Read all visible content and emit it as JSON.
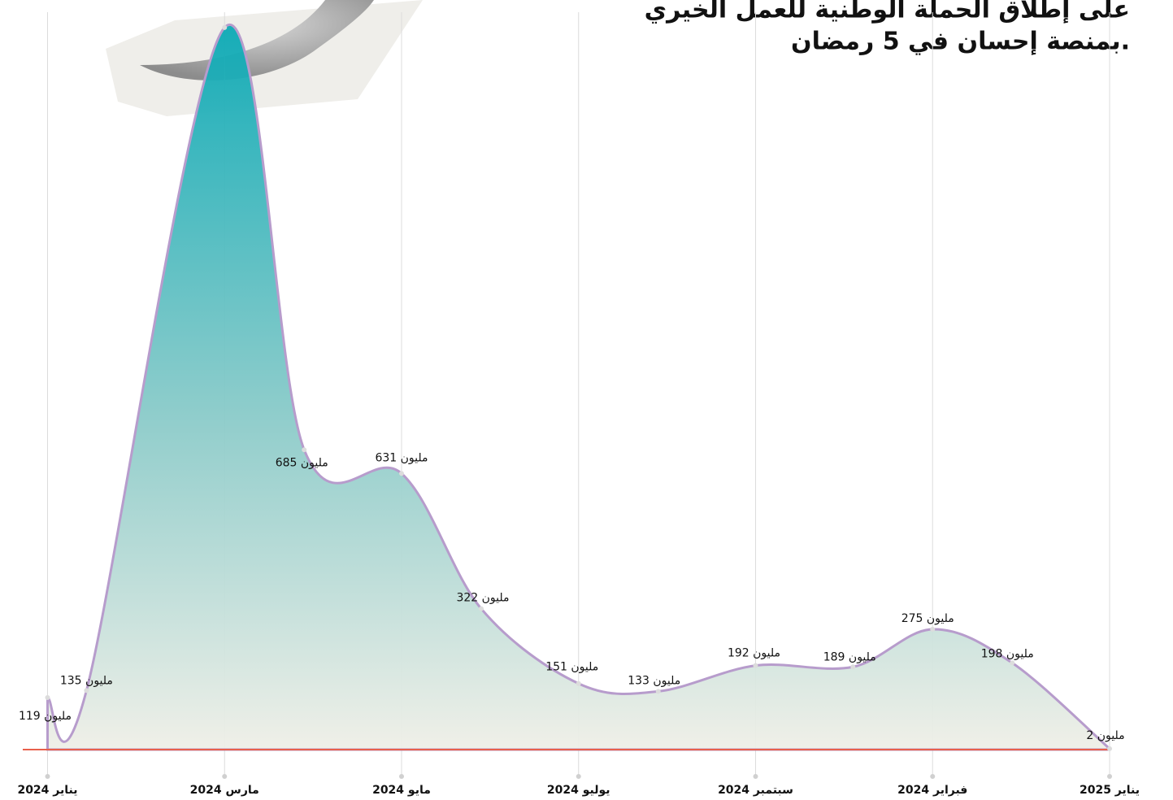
{
  "chart_data": {
    "type": "area",
    "title_lines": [
      "على إطلاق الحملة الوطنية للعمل الخيري",
      "بمنصة إحسان في 5 رمضان."
    ],
    "x": [
      0,
      0.44,
      2,
      2.9,
      4,
      4.9,
      6,
      6.9,
      8,
      9.1,
      10,
      10.9,
      12
    ],
    "values": [
      119,
      135,
      1650,
      685,
      631,
      322,
      151,
      133,
      192,
      189,
      275,
      198,
      2
    ],
    "value_labels": [
      "119 مليون",
      "135 مليون",
      null,
      "685 مليون",
      "631 مليون",
      "322 مليون",
      "151 مليون",
      "133 مليون",
      "192 مليون",
      "189 مليون",
      "275 مليون",
      "198 مليون",
      "2 مليون"
    ],
    "xlim": [
      -0.28,
      12
    ],
    "ylim": [
      0,
      1700
    ],
    "xticks": [
      {
        "value": 0,
        "label": "يناير 2024"
      },
      {
        "value": 2,
        "label": "مارس 2024"
      },
      {
        "value": 4,
        "label": "مايو 2024"
      },
      {
        "value": 6,
        "label": "يوليو 2024"
      },
      {
        "value": 8,
        "label": "سبتمبر 2024"
      },
      {
        "value": 10,
        "label": "فبراير 2024"
      },
      {
        "value": 12,
        "label": "يناير 2025"
      }
    ],
    "color": "#0aa9b5",
    "baseline_color": "#e8604c"
  }
}
